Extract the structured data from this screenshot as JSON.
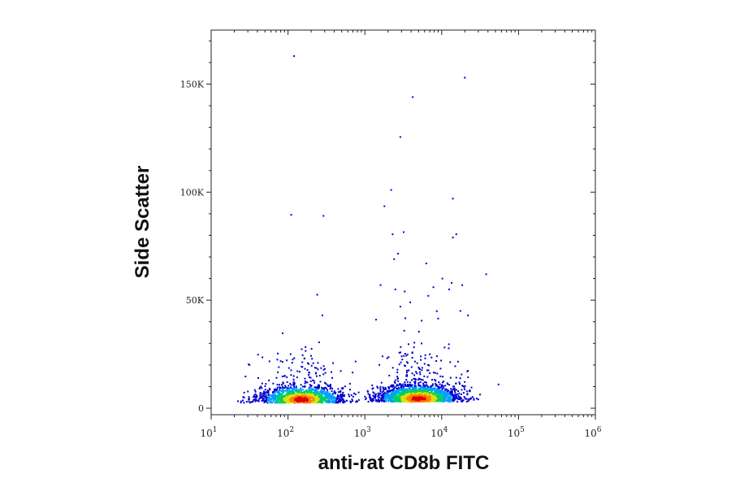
{
  "chart_data": {
    "type": "scatter",
    "xlabel": "anti-rat CD8b FITC",
    "ylabel": "Side Scatter",
    "xscale": "log",
    "yscale": "linear",
    "xlim": [
      10,
      1000000
    ],
    "ylim": [
      -3000,
      175000
    ],
    "x_ticks": [
      {
        "base": "10",
        "exp": "1",
        "value": 10
      },
      {
        "base": "10",
        "exp": "2",
        "value": 100
      },
      {
        "base": "10",
        "exp": "3",
        "value": 1000
      },
      {
        "base": "10",
        "exp": "4",
        "value": 10000
      },
      {
        "base": "10",
        "exp": "5",
        "value": 100000
      },
      {
        "base": "10",
        "exp": "6",
        "value": 1000000
      }
    ],
    "y_ticks": [
      {
        "label": "0",
        "value": 0
      },
      {
        "label": "50K",
        "value": 50000
      },
      {
        "label": "100K",
        "value": 100000
      },
      {
        "label": "150K",
        "value": 150000
      }
    ],
    "grid": false,
    "legend": "none",
    "color_scale": [
      "#0000cc",
      "#00a0ff",
      "#00d060",
      "#e0e000",
      "#ff8000",
      "#e00000"
    ],
    "populations": [
      {
        "x_center": 150,
        "y_center": 4000,
        "count": 1400
      },
      {
        "x_center": 5000,
        "y_center": 4500,
        "count": 1900
      }
    ],
    "points": [
      [
        120,
        163000
      ],
      [
        20000,
        153000
      ],
      [
        4200,
        144000
      ],
      [
        2900,
        125500
      ],
      [
        2200,
        101000
      ],
      [
        14000,
        97000
      ],
      [
        110,
        89500
      ],
      [
        290,
        89000
      ],
      [
        1800,
        93500
      ],
      [
        2300,
        80500
      ],
      [
        3200,
        81500
      ],
      [
        15500,
        80500
      ],
      [
        14000,
        79000
      ],
      [
        2700,
        71500
      ],
      [
        2400,
        69000
      ],
      [
        6300,
        67000
      ],
      [
        10200,
        60000
      ],
      [
        38000,
        62000
      ],
      [
        13500,
        58000
      ],
      [
        1600,
        57000
      ],
      [
        7800,
        56000
      ],
      [
        12500,
        55000
      ],
      [
        18500,
        57000
      ],
      [
        240,
        52500
      ],
      [
        2500,
        55000
      ],
      [
        3300,
        54000
      ],
      [
        6700,
        52000
      ],
      [
        3900,
        49000
      ],
      [
        2900,
        47000
      ],
      [
        280,
        43000
      ],
      [
        22000,
        43000
      ],
      [
        17500,
        45000
      ],
      [
        1400,
        41000
      ],
      [
        5500,
        40500
      ],
      [
        9000,
        41500
      ],
      [
        55000,
        11000
      ]
    ]
  }
}
